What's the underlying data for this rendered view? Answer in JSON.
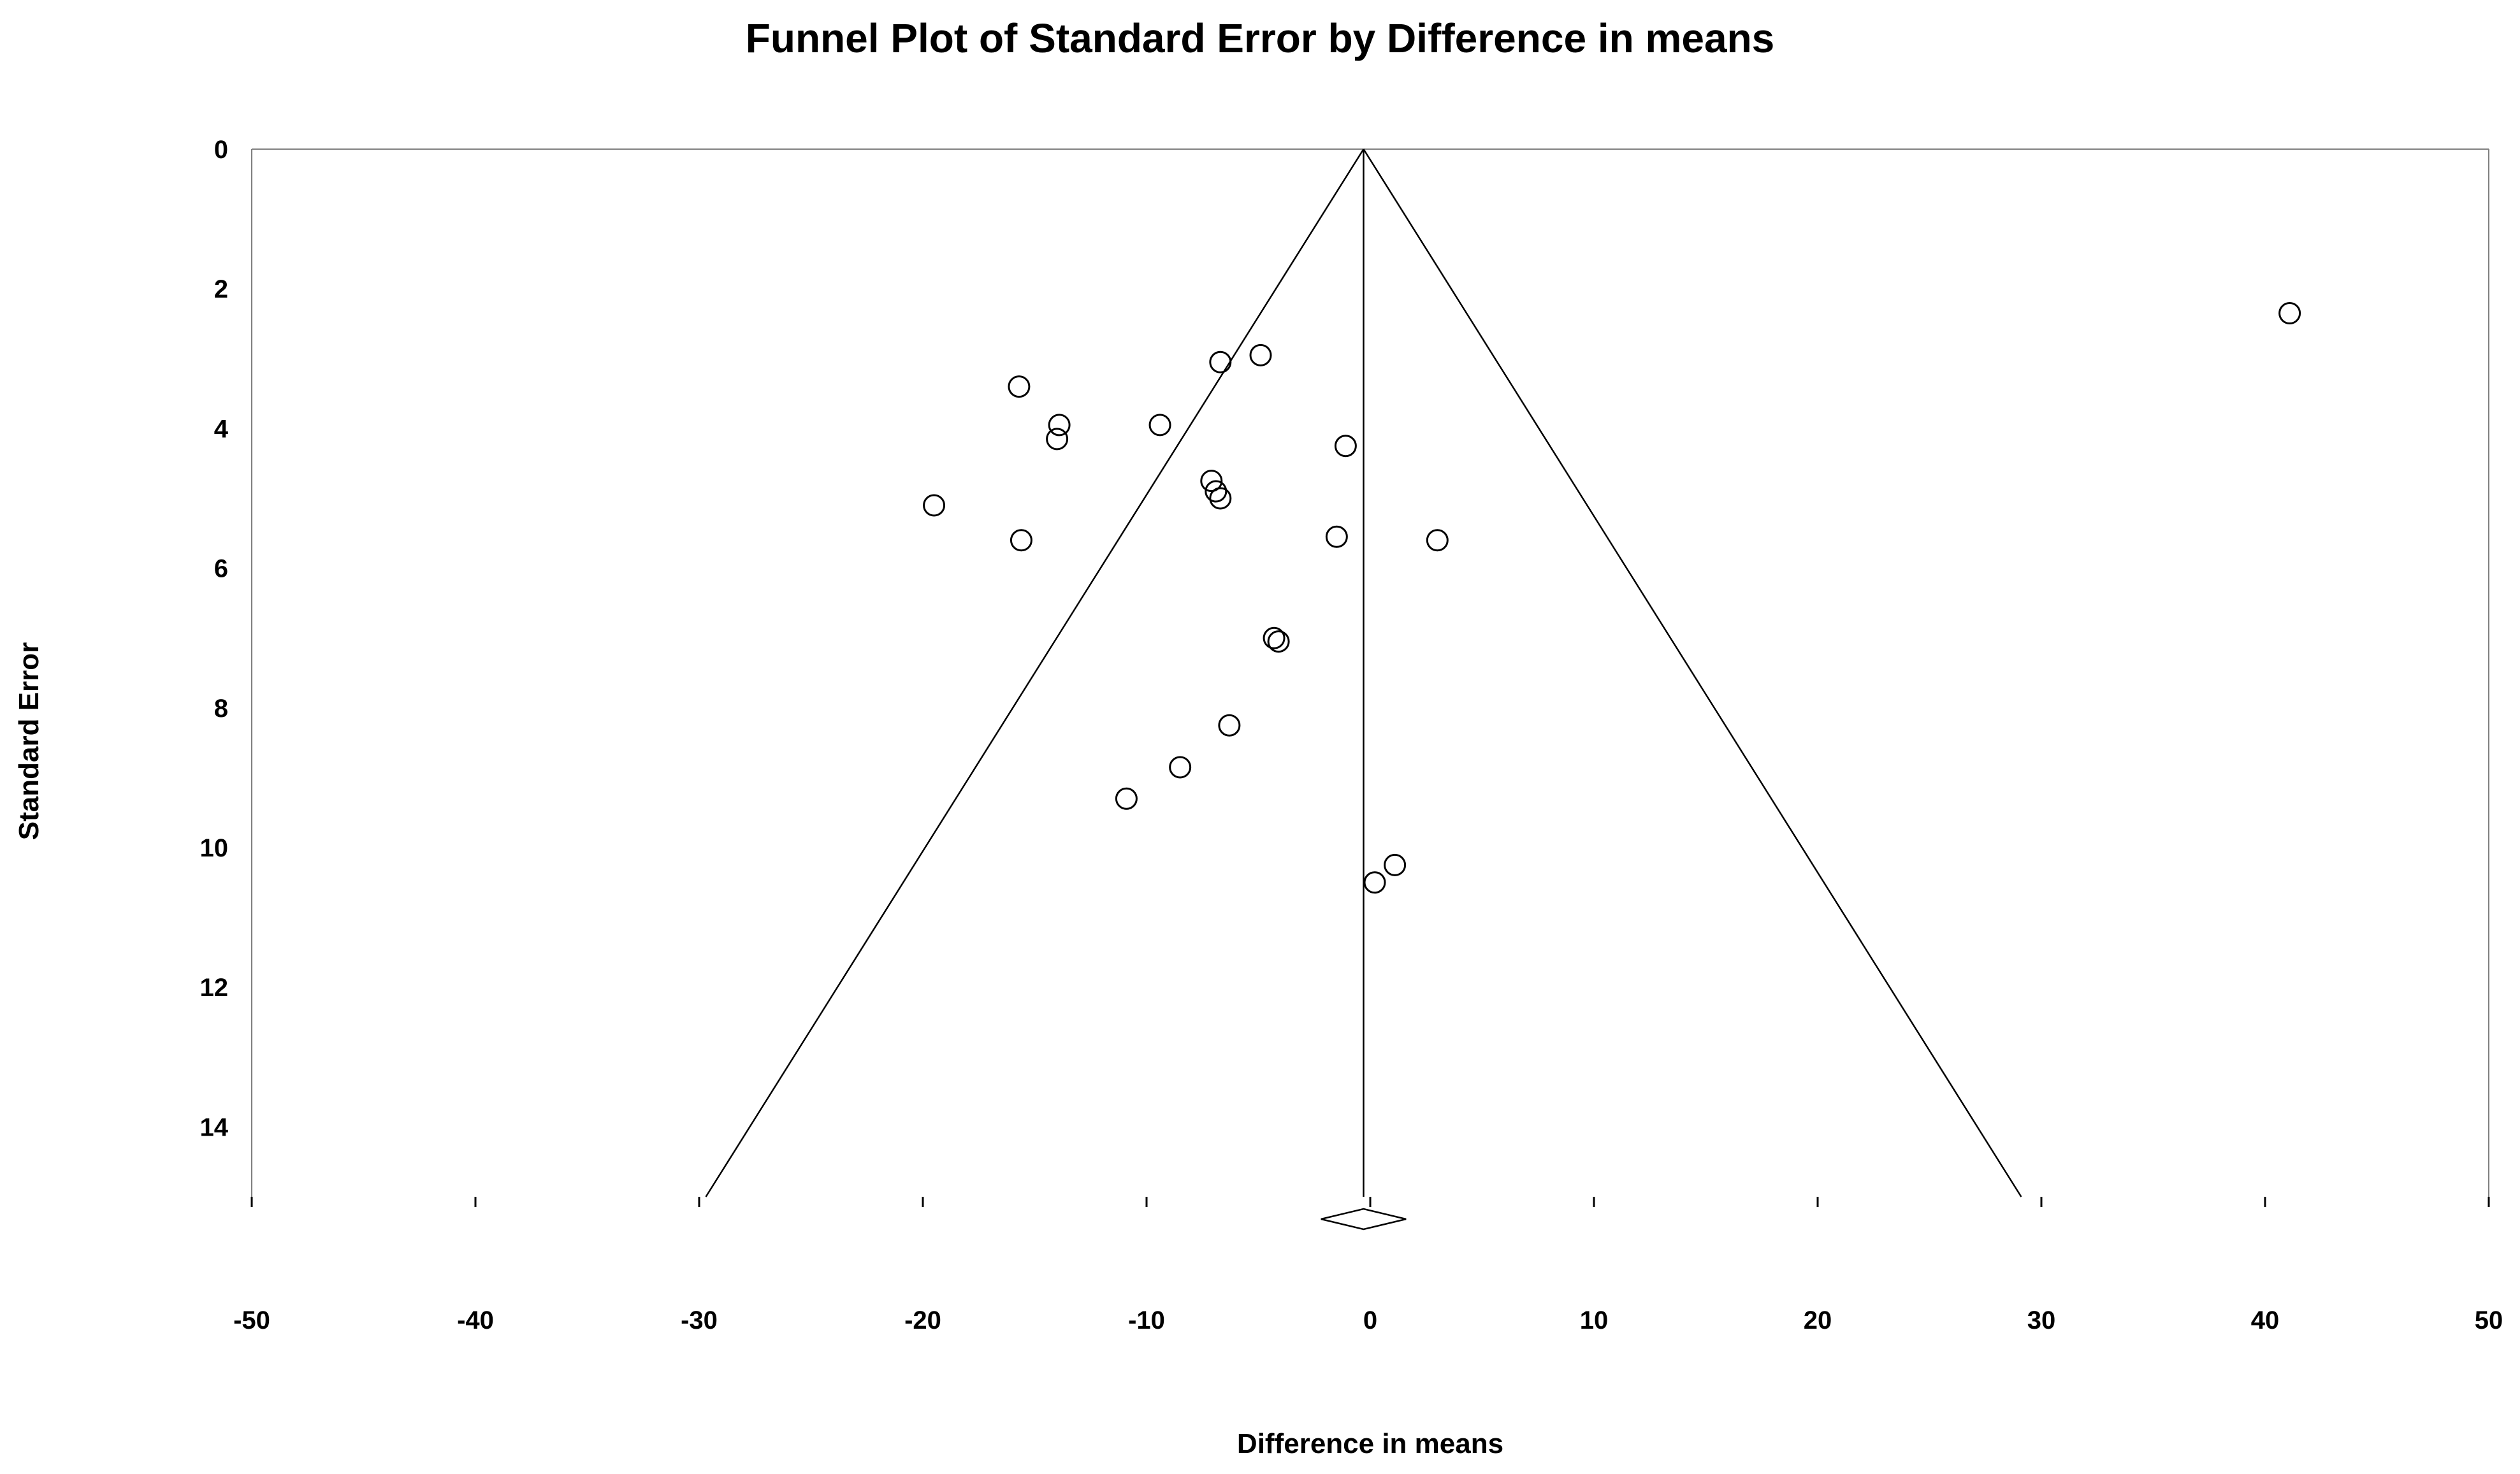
{
  "chart_data": {
    "type": "scatter",
    "title": "Funnel Plot of Standard Error by Difference in means",
    "xlabel": "Difference in means",
    "ylabel": "Standard Error",
    "xlim": [
      -50,
      50
    ],
    "ylim": [
      0,
      15
    ],
    "y_inverted": true,
    "x_ticks": [
      -50,
      -40,
      -30,
      -20,
      -10,
      0,
      10,
      20,
      30,
      40,
      50
    ],
    "y_ticks": [
      0,
      2,
      4,
      6,
      8,
      10,
      12,
      14
    ],
    "pooled_estimate": -0.3,
    "funnel_base_x": [
      -29.7,
      29.1
    ],
    "summary_diamond": {
      "center": -0.3,
      "lower": -2.2,
      "upper": 1.6
    },
    "points": [
      {
        "x": 41.1,
        "y": 2.35
      },
      {
        "x": -4.9,
        "y": 2.95
      },
      {
        "x": -6.7,
        "y": 3.05
      },
      {
        "x": -15.7,
        "y": 3.4
      },
      {
        "x": -13.9,
        "y": 3.95
      },
      {
        "x": -9.4,
        "y": 3.95
      },
      {
        "x": -14.0,
        "y": 4.15
      },
      {
        "x": -1.1,
        "y": 4.25
      },
      {
        "x": -7.1,
        "y": 4.75
      },
      {
        "x": -6.9,
        "y": 4.9
      },
      {
        "x": -6.7,
        "y": 5.0
      },
      {
        "x": -19.5,
        "y": 5.1
      },
      {
        "x": -15.6,
        "y": 5.6
      },
      {
        "x": -1.5,
        "y": 5.55
      },
      {
        "x": 3.0,
        "y": 5.6
      },
      {
        "x": -4.3,
        "y": 7.0
      },
      {
        "x": -4.1,
        "y": 7.05
      },
      {
        "x": -6.3,
        "y": 8.25
      },
      {
        "x": -8.5,
        "y": 8.85
      },
      {
        "x": -10.9,
        "y": 9.3
      },
      {
        "x": 1.1,
        "y": 10.25
      },
      {
        "x": 0.2,
        "y": 10.5
      }
    ]
  }
}
